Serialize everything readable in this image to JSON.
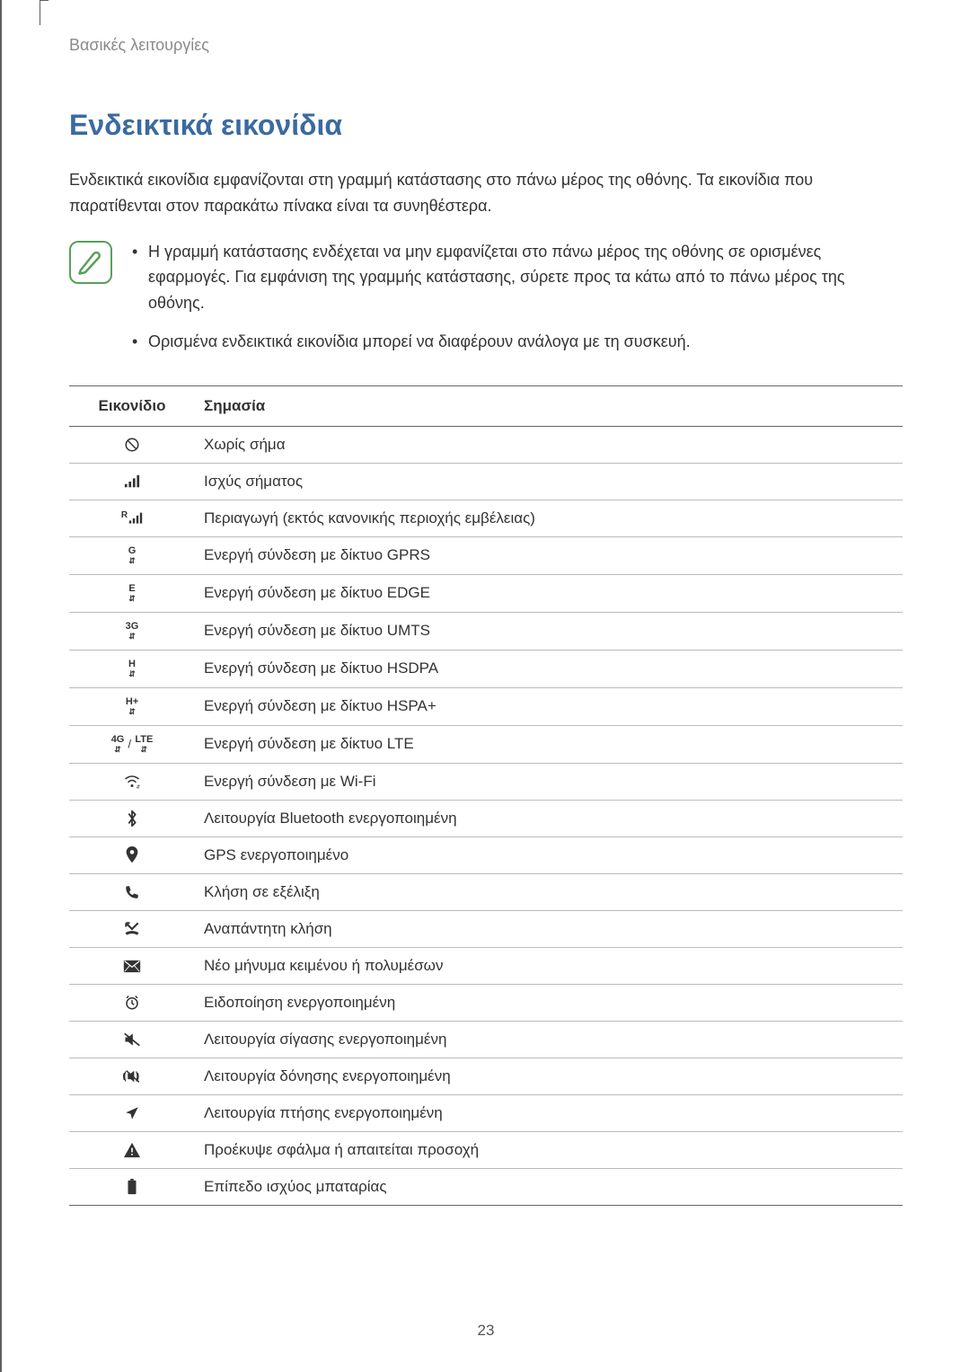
{
  "breadcrumb": "Βασικές λειτουργίες",
  "section_title": "Ενδεικτικά εικονίδια",
  "intro": "Ενδεικτικά εικονίδια εμφανίζονται στη γραμμή κατάστασης στο πάνω μέρος της οθόνης. Τα εικονίδια που παρατίθενται στον παρακάτω πίνακα είναι τα συνηθέστερα.",
  "notes": [
    "Η γραμμή κατάστασης ενδέχεται να μην εμφανίζεται στο πάνω μέρος της οθόνης σε ορισμένες εφαρμογές. Για εμφάνιση της γραμμής κατάστασης, σύρετε προς τα κάτω από το πάνω μέρος της οθόνης.",
    "Ορισμένα ενδεικτικά εικονίδια μπορεί να διαφέρουν ανάλογα με τη συσκευή."
  ],
  "table": {
    "headers": {
      "icon": "Εικονίδιο",
      "meaning": "Σημασία"
    },
    "rows": [
      {
        "icon": "no-signal",
        "meaning": "Χωρίς σήμα"
      },
      {
        "icon": "signal",
        "meaning": "Ισχύς σήματος"
      },
      {
        "icon": "roaming",
        "meaning": "Περιαγωγή (εκτός κανονικής περιοχής εμβέλειας)"
      },
      {
        "icon": "gprs",
        "label": "G",
        "meaning": "Ενεργή σύνδεση με δίκτυο GPRS"
      },
      {
        "icon": "edge",
        "label": "E",
        "meaning": "Ενεργή σύνδεση με δίκτυο EDGE"
      },
      {
        "icon": "umts",
        "label": "3G",
        "meaning": "Ενεργή σύνδεση με δίκτυο UMTS"
      },
      {
        "icon": "hsdpa",
        "label": "H",
        "meaning": "Ενεργή σύνδεση με δίκτυο HSDPA"
      },
      {
        "icon": "hspa",
        "label": "H+",
        "meaning": "Ενεργή σύνδεση με δίκτυο HSPA+"
      },
      {
        "icon": "lte",
        "label": "4G / LTE",
        "meaning": "Ενεργή σύνδεση με δίκτυο LTE"
      },
      {
        "icon": "wifi",
        "meaning": "Ενεργή σύνδεση με Wi-Fi"
      },
      {
        "icon": "bluetooth",
        "meaning": "Λειτουργία Bluetooth ενεργοποιημένη"
      },
      {
        "icon": "gps",
        "meaning": "GPS ενεργοποιημένο"
      },
      {
        "icon": "call",
        "meaning": "Κλήση σε εξέλιξη"
      },
      {
        "icon": "missed-call",
        "meaning": "Αναπάντητη κλήση"
      },
      {
        "icon": "message",
        "meaning": "Νέο μήνυμα κειμένου ή πολυμέσων"
      },
      {
        "icon": "alarm",
        "meaning": "Ειδοποίηση ενεργοποιημένη"
      },
      {
        "icon": "mute",
        "meaning": "Λειτουργία σίγασης ενεργοποιημένη"
      },
      {
        "icon": "vibrate",
        "meaning": "Λειτουργία δόνησης ενεργοποιημένη"
      },
      {
        "icon": "airplane",
        "meaning": "Λειτουργία πτήσης ενεργοποιημένη"
      },
      {
        "icon": "warning",
        "meaning": "Προέκυψε σφάλμα ή απαιτείται προσοχή"
      },
      {
        "icon": "battery",
        "meaning": "Επίπεδο ισχύος μπαταρίας"
      }
    ]
  },
  "page_number": "23",
  "colors": {
    "title": "#3b6aa0",
    "breadcrumb": "#8a8a8a",
    "note_border": "#5aa05a",
    "table_border_heavy": "#666666",
    "table_border_light": "#bbbbbb",
    "vertical_line": "#606060"
  }
}
